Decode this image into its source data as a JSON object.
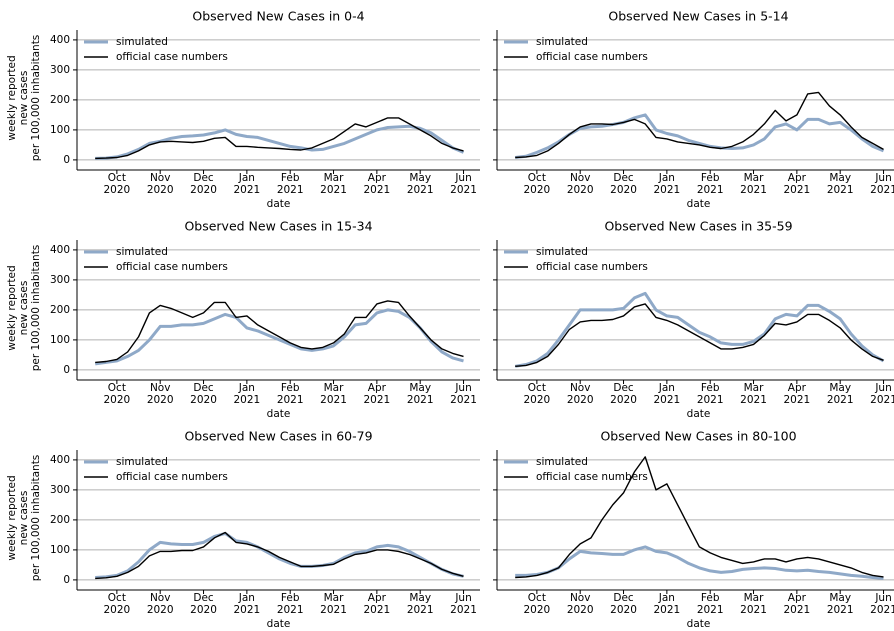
{
  "chart_data": [
    {
      "type": "line",
      "title": "Observed New Cases in 0-4",
      "xlabel": "date",
      "ylabel": "weekly reported\nnew cases\nper 100,000 inhabitants",
      "ytick_labels": true,
      "x": [
        9.5,
        9.75,
        10,
        10.25,
        10.5,
        10.75,
        11,
        11.25,
        11.5,
        11.75,
        12,
        12.25,
        12.5,
        12.75,
        13,
        13.25,
        13.5,
        13.75,
        14,
        14.25,
        14.5,
        14.75,
        15,
        15.25,
        15.5,
        15.75,
        16,
        16.25,
        16.5,
        16.75,
        17,
        17.25,
        17.5,
        17.75,
        18
      ],
      "series": [
        {
          "name": "simulated",
          "color": "#8fa9c8",
          "width": 3,
          "values": [
            5,
            6,
            10,
            20,
            35,
            55,
            62,
            72,
            78,
            80,
            83,
            90,
            100,
            85,
            78,
            75,
            65,
            55,
            45,
            40,
            33,
            35,
            45,
            55,
            70,
            85,
            100,
            108,
            110,
            112,
            105,
            90,
            65,
            40,
            25
          ]
        },
        {
          "name": "official case numbers",
          "color": "#000000",
          "width": 1.4,
          "values": [
            5,
            6,
            8,
            15,
            30,
            50,
            60,
            62,
            60,
            58,
            62,
            72,
            75,
            45,
            45,
            42,
            40,
            38,
            35,
            33,
            40,
            55,
            70,
            95,
            120,
            110,
            125,
            140,
            140,
            120,
            100,
            80,
            55,
            40,
            30
          ]
        }
      ],
      "xlim": [
        9.08,
        18.38
      ],
      "xticks": [
        {
          "value": 10,
          "label": "Oct\n2020"
        },
        {
          "value": 11,
          "label": "Nov\n2020"
        },
        {
          "value": 12,
          "label": "Dec\n2020"
        },
        {
          "value": 13,
          "label": "Jan\n2021"
        },
        {
          "value": 14,
          "label": "Feb\n2021"
        },
        {
          "value": 15,
          "label": "Mar\n2021"
        },
        {
          "value": 16,
          "label": "Apr\n2021"
        },
        {
          "value": 17,
          "label": "May\n2021"
        },
        {
          "value": 18,
          "label": "Jun\n2021"
        }
      ],
      "ylim": [
        -17,
        433
      ],
      "yticks": [
        0,
        100,
        200,
        300,
        400
      ],
      "grid": true,
      "legend": "upper-left"
    },
    {
      "type": "line",
      "title": "Observed New Cases in 5-14",
      "xlabel": "date",
      "ytick_labels": false,
      "x": [
        9.5,
        9.75,
        10,
        10.25,
        10.5,
        10.75,
        11,
        11.25,
        11.5,
        11.75,
        12,
        12.25,
        12.5,
        12.75,
        13,
        13.25,
        13.5,
        13.75,
        14,
        14.25,
        14.5,
        14.75,
        15,
        15.25,
        15.5,
        15.75,
        16,
        16.25,
        16.5,
        16.75,
        17,
        17.25,
        17.5,
        17.75,
        18
      ],
      "series": [
        {
          "name": "simulated",
          "color": "#8fa9c8",
          "width": 3,
          "values": [
            8,
            12,
            25,
            40,
            60,
            85,
            105,
            110,
            112,
            118,
            125,
            140,
            150,
            100,
            88,
            80,
            65,
            55,
            45,
            40,
            38,
            40,
            50,
            70,
            110,
            120,
            100,
            135,
            135,
            120,
            125,
            100,
            70,
            45,
            30
          ]
        },
        {
          "name": "official case numbers",
          "color": "#000000",
          "width": 1.4,
          "values": [
            8,
            10,
            15,
            30,
            55,
            85,
            110,
            120,
            120,
            118,
            125,
            135,
            120,
            75,
            70,
            60,
            55,
            50,
            42,
            38,
            45,
            60,
            85,
            120,
            165,
            130,
            150,
            220,
            225,
            180,
            150,
            110,
            75,
            55,
            35
          ]
        }
      ],
      "xlim": [
        9.08,
        18.38
      ],
      "xticks": [
        {
          "value": 10,
          "label": "Oct\n2020"
        },
        {
          "value": 11,
          "label": "Nov\n2020"
        },
        {
          "value": 12,
          "label": "Dec\n2020"
        },
        {
          "value": 13,
          "label": "Jan\n2021"
        },
        {
          "value": 14,
          "label": "Feb\n2021"
        },
        {
          "value": 15,
          "label": "Mar\n2021"
        },
        {
          "value": 16,
          "label": "Apr\n2021"
        },
        {
          "value": 17,
          "label": "May\n2021"
        },
        {
          "value": 18,
          "label": "Jun\n2021"
        }
      ],
      "ylim": [
        -17,
        433
      ],
      "yticks": [
        0,
        100,
        200,
        300,
        400
      ],
      "grid": true,
      "legend": "upper-left"
    },
    {
      "type": "line",
      "title": "Observed New Cases in 15-34",
      "xlabel": "date",
      "ylabel": "weekly reported\nnew cases\nper 100,000 inhabitants",
      "ytick_labels": true,
      "x": [
        9.5,
        9.75,
        10,
        10.25,
        10.5,
        10.75,
        11,
        11.25,
        11.5,
        11.75,
        12,
        12.25,
        12.5,
        12.75,
        13,
        13.25,
        13.5,
        13.75,
        14,
        14.25,
        14.5,
        14.75,
        15,
        15.25,
        15.5,
        15.75,
        16,
        16.25,
        16.5,
        16.75,
        17,
        17.25,
        17.5,
        17.75,
        18
      ],
      "series": [
        {
          "name": "simulated",
          "color": "#8fa9c8",
          "width": 3,
          "values": [
            20,
            25,
            30,
            45,
            65,
            100,
            145,
            145,
            150,
            150,
            155,
            170,
            185,
            175,
            140,
            130,
            115,
            100,
            85,
            70,
            65,
            70,
            80,
            110,
            150,
            155,
            190,
            200,
            195,
            175,
            140,
            95,
            60,
            40,
            30
          ]
        },
        {
          "name": "official case numbers",
          "color": "#000000",
          "width": 1.4,
          "values": [
            25,
            28,
            35,
            60,
            110,
            190,
            215,
            205,
            190,
            175,
            190,
            225,
            225,
            175,
            180,
            150,
            130,
            110,
            90,
            75,
            70,
            75,
            90,
            120,
            175,
            175,
            220,
            230,
            225,
            180,
            140,
            100,
            70,
            55,
            45
          ]
        }
      ],
      "xlim": [
        9.08,
        18.38
      ],
      "xticks": [
        {
          "value": 10,
          "label": "Oct\n2020"
        },
        {
          "value": 11,
          "label": "Nov\n2020"
        },
        {
          "value": 12,
          "label": "Dec\n2020"
        },
        {
          "value": 13,
          "label": "Jan\n2021"
        },
        {
          "value": 14,
          "label": "Feb\n2021"
        },
        {
          "value": 15,
          "label": "Mar\n2021"
        },
        {
          "value": 16,
          "label": "Apr\n2021"
        },
        {
          "value": 17,
          "label": "May\n2021"
        },
        {
          "value": 18,
          "label": "Jun\n2021"
        }
      ],
      "ylim": [
        -17,
        433
      ],
      "yticks": [
        0,
        100,
        200,
        300,
        400
      ],
      "grid": true,
      "legend": "upper-left"
    },
    {
      "type": "line",
      "title": "Observed New Cases in 35-59",
      "xlabel": "date",
      "ytick_labels": false,
      "x": [
        9.5,
        9.75,
        10,
        10.25,
        10.5,
        10.75,
        11,
        11.25,
        11.5,
        11.75,
        12,
        12.25,
        12.5,
        12.75,
        13,
        13.25,
        13.5,
        13.75,
        14,
        14.25,
        14.5,
        14.75,
        15,
        15.25,
        15.5,
        15.75,
        16,
        16.25,
        16.5,
        16.75,
        17,
        17.25,
        17.5,
        17.75,
        18
      ],
      "series": [
        {
          "name": "simulated",
          "color": "#8fa9c8",
          "width": 3,
          "values": [
            12,
            18,
            30,
            55,
            100,
            150,
            200,
            200,
            200,
            200,
            205,
            240,
            255,
            200,
            180,
            175,
            150,
            125,
            110,
            90,
            85,
            85,
            95,
            120,
            170,
            185,
            180,
            215,
            215,
            195,
            170,
            120,
            80,
            50,
            30
          ]
        },
        {
          "name": "official case numbers",
          "color": "#000000",
          "width": 1.4,
          "values": [
            12,
            15,
            25,
            45,
            85,
            135,
            160,
            165,
            165,
            168,
            180,
            210,
            220,
            175,
            165,
            150,
            130,
            110,
            90,
            70,
            70,
            75,
            85,
            115,
            155,
            150,
            160,
            185,
            185,
            165,
            140,
            100,
            70,
            45,
            32
          ]
        }
      ],
      "xlim": [
        9.08,
        18.38
      ],
      "xticks": [
        {
          "value": 10,
          "label": "Oct\n2020"
        },
        {
          "value": 11,
          "label": "Nov\n2020"
        },
        {
          "value": 12,
          "label": "Dec\n2020"
        },
        {
          "value": 13,
          "label": "Jan\n2021"
        },
        {
          "value": 14,
          "label": "Feb\n2021"
        },
        {
          "value": 15,
          "label": "Mar\n2021"
        },
        {
          "value": 16,
          "label": "Apr\n2021"
        },
        {
          "value": 17,
          "label": "May\n2021"
        },
        {
          "value": 18,
          "label": "Jun\n2021"
        }
      ],
      "ylim": [
        -17,
        433
      ],
      "yticks": [
        0,
        100,
        200,
        300,
        400
      ],
      "grid": true,
      "legend": "upper-left"
    },
    {
      "type": "line",
      "title": "Observed New Cases in 60-79",
      "xlabel": "date",
      "ylabel": "weekly reported\nnew cases\nper 100,000 inhabitants",
      "ytick_labels": true,
      "x": [
        9.5,
        9.75,
        10,
        10.25,
        10.5,
        10.75,
        11,
        11.25,
        11.5,
        11.75,
        12,
        12.25,
        12.5,
        12.75,
        13,
        13.25,
        13.5,
        13.75,
        14,
        14.25,
        14.5,
        14.75,
        15,
        15.25,
        15.5,
        15.75,
        16,
        16.25,
        16.5,
        16.75,
        17,
        17.25,
        17.5,
        17.75,
        18
      ],
      "series": [
        {
          "name": "simulated",
          "color": "#8fa9c8",
          "width": 3,
          "values": [
            8,
            10,
            15,
            30,
            60,
            100,
            125,
            120,
            118,
            118,
            125,
            145,
            155,
            130,
            125,
            110,
            90,
            70,
            55,
            45,
            45,
            48,
            55,
            75,
            90,
            95,
            110,
            115,
            110,
            95,
            75,
            55,
            35,
            20,
            12
          ]
        },
        {
          "name": "official case numbers",
          "color": "#000000",
          "width": 1.4,
          "values": [
            5,
            7,
            12,
            25,
            45,
            80,
            95,
            95,
            98,
            98,
            110,
            140,
            158,
            125,
            120,
            110,
            95,
            75,
            60,
            45,
            45,
            48,
            52,
            70,
            85,
            90,
            100,
            100,
            95,
            85,
            70,
            55,
            35,
            22,
            12
          ]
        }
      ],
      "xlim": [
        9.08,
        18.38
      ],
      "xticks": [
        {
          "value": 10,
          "label": "Oct\n2020"
        },
        {
          "value": 11,
          "label": "Nov\n2020"
        },
        {
          "value": 12,
          "label": "Dec\n2020"
        },
        {
          "value": 13,
          "label": "Jan\n2021"
        },
        {
          "value": 14,
          "label": "Feb\n2021"
        },
        {
          "value": 15,
          "label": "Mar\n2021"
        },
        {
          "value": 16,
          "label": "Apr\n2021"
        },
        {
          "value": 17,
          "label": "May\n2021"
        },
        {
          "value": 18,
          "label": "Jun\n2021"
        }
      ],
      "ylim": [
        -17,
        433
      ],
      "yticks": [
        0,
        100,
        200,
        300,
        400
      ],
      "grid": true,
      "legend": "upper-left"
    },
    {
      "type": "line",
      "title": "Observed New Cases in 80-100",
      "xlabel": "date",
      "ytick_labels": false,
      "x": [
        9.5,
        9.75,
        10,
        10.25,
        10.5,
        10.75,
        11,
        11.25,
        11.5,
        11.75,
        12,
        12.25,
        12.5,
        12.75,
        13,
        13.25,
        13.5,
        13.75,
        14,
        14.25,
        14.5,
        14.75,
        15,
        15.25,
        15.5,
        15.75,
        16,
        16.25,
        16.5,
        16.75,
        17,
        17.25,
        17.5,
        17.75,
        18
      ],
      "series": [
        {
          "name": "simulated",
          "color": "#8fa9c8",
          "width": 3,
          "values": [
            15,
            15,
            18,
            25,
            40,
            70,
            95,
            90,
            88,
            85,
            85,
            100,
            110,
            95,
            90,
            75,
            55,
            40,
            30,
            25,
            28,
            35,
            38,
            40,
            38,
            32,
            30,
            32,
            28,
            25,
            20,
            15,
            12,
            8,
            5
          ]
        },
        {
          "name": "official case numbers",
          "color": "#000000",
          "width": 1.4,
          "values": [
            8,
            10,
            15,
            25,
            40,
            85,
            120,
            140,
            200,
            250,
            290,
            360,
            410,
            300,
            320,
            250,
            180,
            110,
            90,
            75,
            65,
            55,
            60,
            70,
            70,
            60,
            70,
            75,
            70,
            60,
            50,
            40,
            25,
            15,
            10
          ]
        }
      ],
      "xlim": [
        9.08,
        18.38
      ],
      "xticks": [
        {
          "value": 10,
          "label": "Oct\n2020"
        },
        {
          "value": 11,
          "label": "Nov\n2020"
        },
        {
          "value": 12,
          "label": "Dec\n2020"
        },
        {
          "value": 13,
          "label": "Jan\n2021"
        },
        {
          "value": 14,
          "label": "Feb\n2021"
        },
        {
          "value": 15,
          "label": "Mar\n2021"
        },
        {
          "value": 16,
          "label": "Apr\n2021"
        },
        {
          "value": 17,
          "label": "May\n2021"
        },
        {
          "value": 18,
          "label": "Jun\n2021"
        }
      ],
      "ylim": [
        -17,
        433
      ],
      "yticks": [
        0,
        100,
        200,
        300,
        400
      ],
      "grid": true,
      "legend": "upper-left"
    }
  ]
}
